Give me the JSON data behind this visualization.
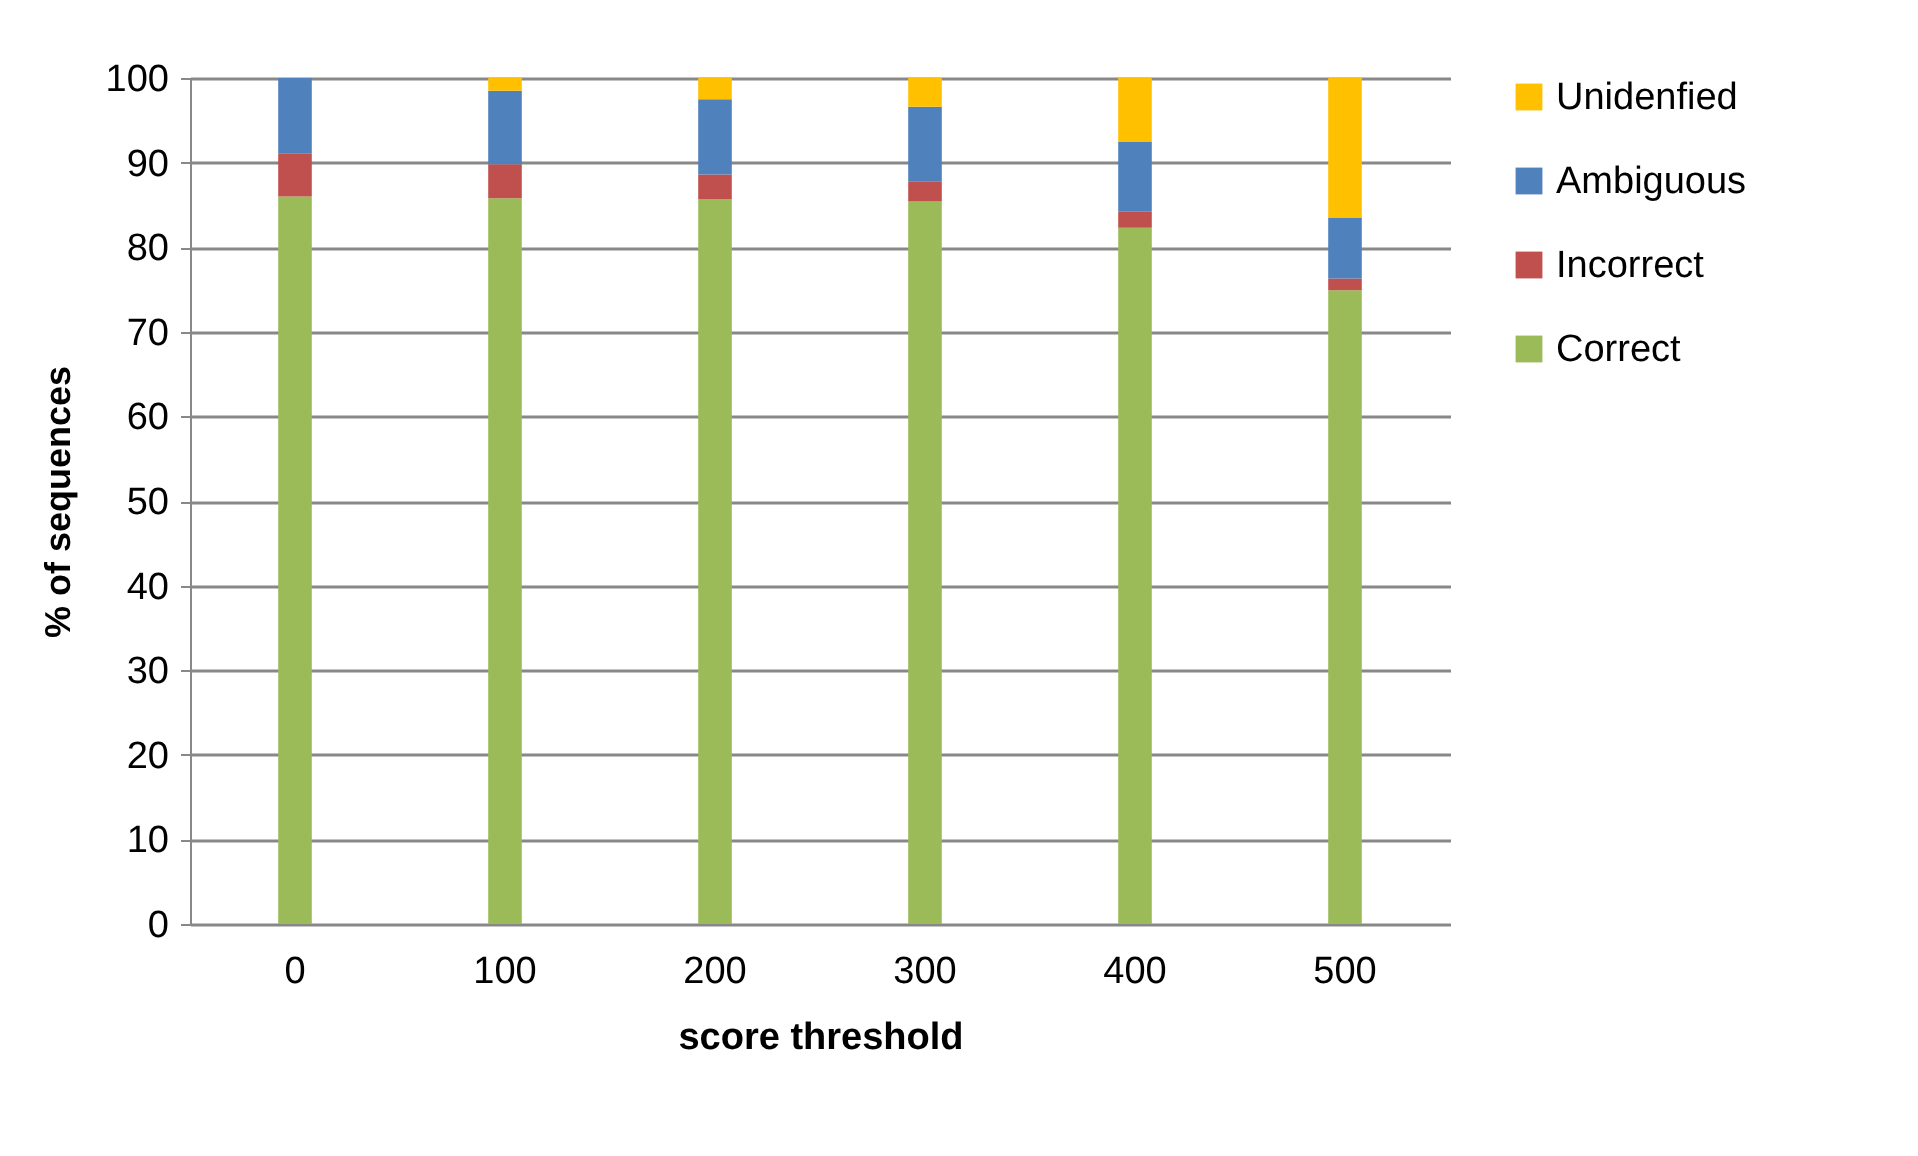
{
  "chart_data": {
    "type": "bar",
    "stacked": true,
    "xlabel": "score threshold",
    "ylabel": "% of sequences",
    "categories": [
      "0",
      "100",
      "200",
      "300",
      "400",
      "500"
    ],
    "series": [
      {
        "name": "Correct",
        "color": "#9bbb59",
        "values": [
          86.0,
          85.8,
          85.7,
          85.4,
          82.3,
          74.9
        ]
      },
      {
        "name": "Incorrect",
        "color": "#c0504d",
        "values": [
          5.1,
          4.0,
          2.9,
          2.4,
          1.9,
          1.4
        ]
      },
      {
        "name": "Ambiguous",
        "color": "#4f81bd",
        "values": [
          8.9,
          8.7,
          8.9,
          8.8,
          8.3,
          7.2
        ]
      },
      {
        "name": "Unidenfied",
        "color": "#ffc000",
        "values": [
          0,
          1.5,
          2.5,
          3.4,
          7.5,
          16.5
        ]
      }
    ],
    "ylim": [
      0,
      100
    ],
    "yticks": [
      0,
      10,
      20,
      30,
      40,
      50,
      60,
      70,
      80,
      90,
      100
    ],
    "grid": "y",
    "legend": "right"
  }
}
